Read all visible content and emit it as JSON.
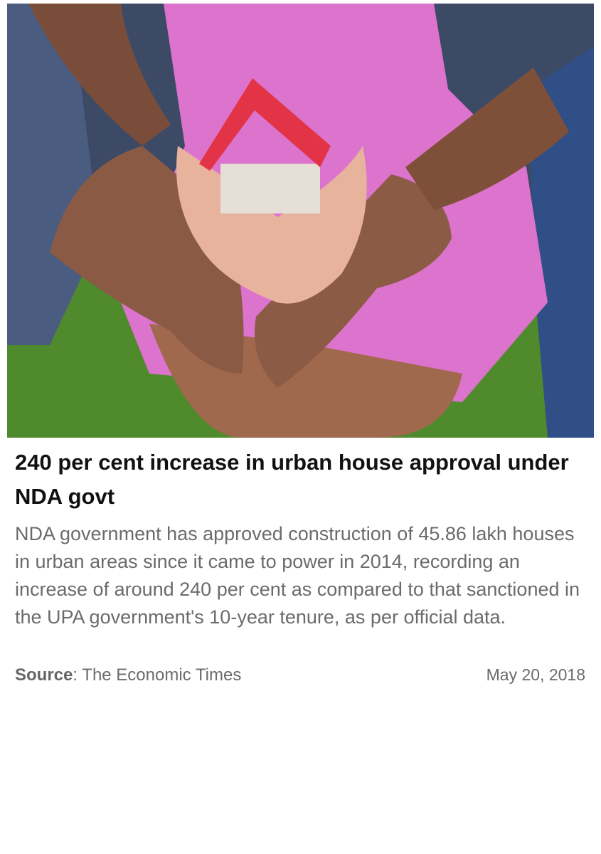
{
  "article": {
    "headline": "240 per cent increase in urban house approval under NDA govt",
    "summary": "NDA government has approved construction of 45.86 lakh houses in urban areas since it came to power in 2014, recording an increase of around 240 per cent as compared to that sanctioned in the UPA government's 10-year tenure, as per official data.",
    "source_label": "Source",
    "source_text": ": The Economic Times",
    "date": "May 20, 2018"
  }
}
